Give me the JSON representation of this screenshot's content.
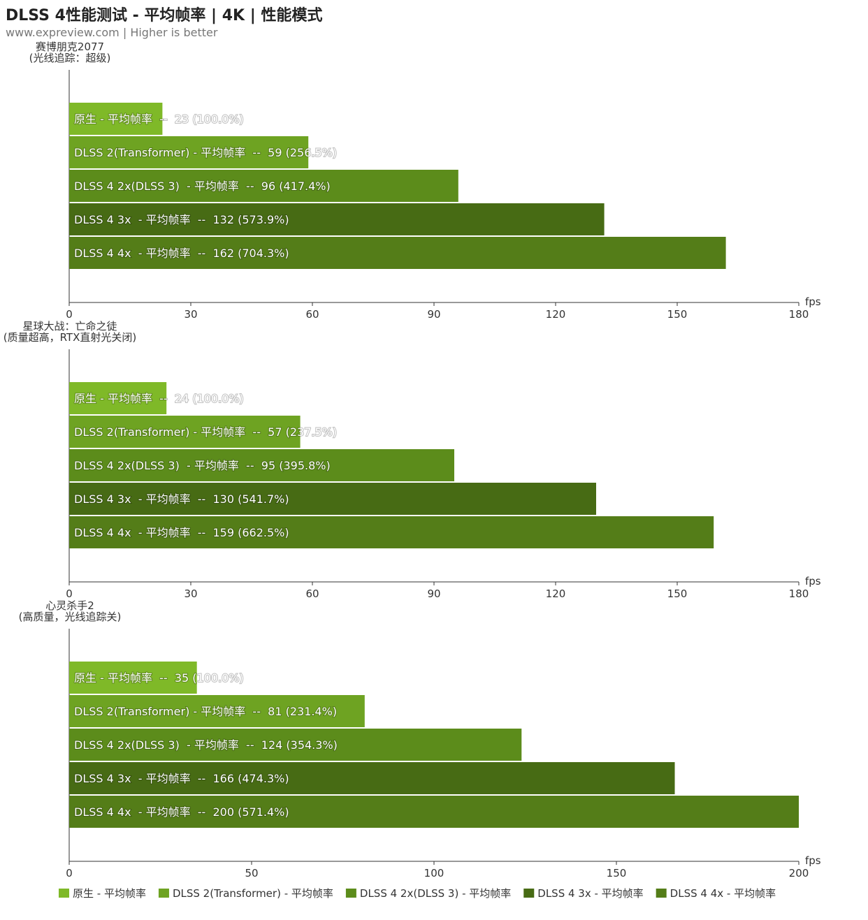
{
  "title": "DLSS 4性能测试 - 平均帧率 | 4K | 性能模式",
  "subtitle": "www.expreview.com | Higher is better",
  "colors": [
    "#7fb928",
    "#6ea322",
    "#5c8c1b",
    "#476b14",
    "#547d18"
  ],
  "chart_data": [
    {
      "type": "bar",
      "orientation": "horizontal",
      "title_lines": [
        "赛博朋克2077",
        "(光线追踪：超级)"
      ],
      "xlabel": "fps",
      "xlim": [
        0,
        180
      ],
      "ticks": [
        0,
        30,
        60,
        90,
        120,
        150,
        180
      ],
      "bars": [
        {
          "label": "原生 - 平均帧率  --  23 (100.0%)",
          "value": 23
        },
        {
          "label": "DLSS 2(Transformer) - 平均帧率  --  59 (256.5%)",
          "value": 59
        },
        {
          "label": "DLSS 4 2x(DLSS 3)  - 平均帧率  --  96 (417.4%)",
          "value": 96
        },
        {
          "label": "DLSS 4 3x  - 平均帧率  --  132 (573.9%)",
          "value": 132
        },
        {
          "label": "DLSS 4 4x  - 平均帧率  --  162 (704.3%)",
          "value": 162
        }
      ]
    },
    {
      "type": "bar",
      "orientation": "horizontal",
      "title_lines": [
        "星球大战：亡命之徒",
        "(质量超高，RTX直射光关闭)"
      ],
      "xlabel": "fps",
      "xlim": [
        0,
        180
      ],
      "ticks": [
        0,
        30,
        60,
        90,
        120,
        150,
        180
      ],
      "bars": [
        {
          "label": "原生 - 平均帧率  --  24 (100.0%)",
          "value": 24
        },
        {
          "label": "DLSS 2(Transformer) - 平均帧率  --  57 (237.5%)",
          "value": 57
        },
        {
          "label": "DLSS 4 2x(DLSS 3)  - 平均帧率  --  95 (395.8%)",
          "value": 95
        },
        {
          "label": "DLSS 4 3x  - 平均帧率  --  130 (541.7%)",
          "value": 130
        },
        {
          "label": "DLSS 4 4x  - 平均帧率  --  159 (662.5%)",
          "value": 159
        }
      ]
    },
    {
      "type": "bar",
      "orientation": "horizontal",
      "title_lines": [
        "心灵杀手2",
        "(高质量，光线追踪关)"
      ],
      "xlabel": "fps",
      "xlim": [
        0,
        200
      ],
      "ticks": [
        0,
        50,
        100,
        150,
        200
      ],
      "bars": [
        {
          "label": "原生 - 平均帧率  --  35 (100.0%)",
          "value": 35
        },
        {
          "label": "DLSS 2(Transformer) - 平均帧率  --  81 (231.4%)",
          "value": 81
        },
        {
          "label": "DLSS 4 2x(DLSS 3)  - 平均帧率  --  124 (354.3%)",
          "value": 124
        },
        {
          "label": "DLSS 4 3x  - 平均帧率  --  166 (474.3%)",
          "value": 166
        },
        {
          "label": "DLSS 4 4x  - 平均帧率  --  200 (571.4%)",
          "value": 200
        }
      ]
    }
  ],
  "legend": [
    "原生 - 平均帧率",
    "DLSS 2(Transformer) - 平均帧率",
    "DLSS 4 2x(DLSS 3)  - 平均帧率",
    "DLSS 4 3x  - 平均帧率",
    "DLSS 4 4x  - 平均帧率"
  ]
}
